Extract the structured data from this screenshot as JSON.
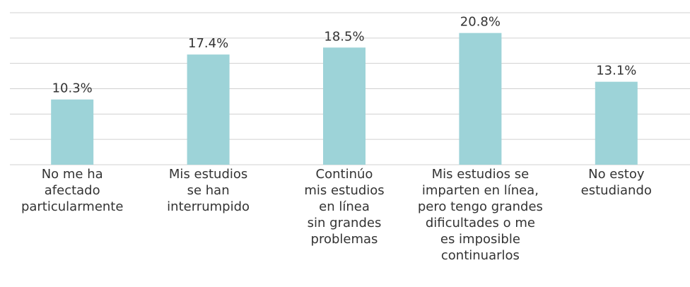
{
  "chart_data": {
    "type": "bar",
    "categories": [
      "No me ha\nafectado\nparticularmente",
      "Mis estudios\nse han\ninterrumpido",
      "Continúo\nmis estudios\nen línea\nsin grandes\nproblemas",
      "Mis estudios se\nimparten en línea,\npero tengo grandes\ndificultades o me\nes imposible\ncontinuarlos",
      "No estoy\nestudiando"
    ],
    "values": [
      10.3,
      17.4,
      18.5,
      20.8,
      13.1
    ],
    "value_labels": [
      "10.3%",
      "17.4%",
      "18.5%",
      "20.8%",
      "13.1%"
    ],
    "color": "#9dd3d8",
    "ylim": [
      0,
      24
    ],
    "yticks": [
      0,
      4,
      8,
      12,
      16,
      20,
      24
    ],
    "grid": true
  }
}
